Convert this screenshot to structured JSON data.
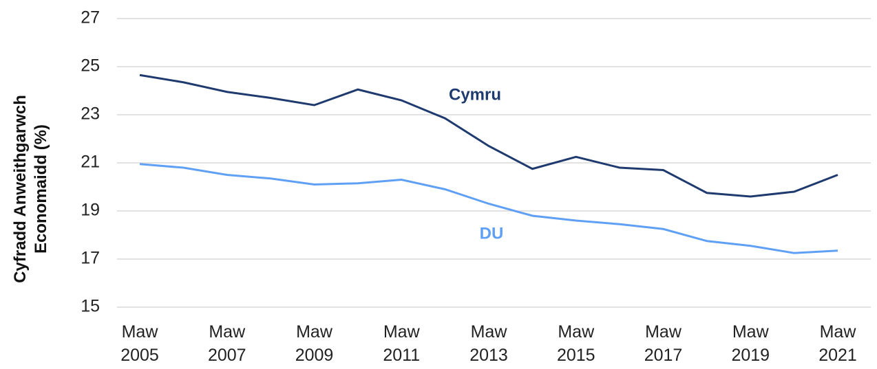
{
  "chart_data": {
    "type": "line",
    "ylabel": "Cyfradd Anweithgarwch Economaidd (%)",
    "categories": [
      "Maw 2005",
      null,
      "Maw 2007",
      null,
      "Maw 2009",
      null,
      "Maw 2011",
      null,
      "Maw 2013",
      null,
      "Maw 2015",
      null,
      "Maw 2017",
      null,
      "Maw 2019",
      null,
      "Maw 2021"
    ],
    "series": [
      {
        "name": "Cymru",
        "color": "#1f3a6e",
        "values": [
          24.65,
          24.35,
          23.95,
          23.7,
          23.4,
          24.05,
          23.6,
          22.85,
          21.7,
          20.75,
          21.25,
          20.8,
          20.7,
          19.75,
          19.6,
          19.8,
          20.5
        ]
      },
      {
        "name": "DU",
        "color": "#5fa0f5",
        "values": [
          20.95,
          20.8,
          20.5,
          20.35,
          20.1,
          20.15,
          20.3,
          19.9,
          19.3,
          18.8,
          18.6,
          18.45,
          18.25,
          17.75,
          17.55,
          17.25,
          17.35
        ]
      }
    ],
    "ylim": [
      15,
      27
    ],
    "yticks": [
      15,
      17,
      19,
      21,
      23,
      25,
      27
    ],
    "grid": true
  }
}
